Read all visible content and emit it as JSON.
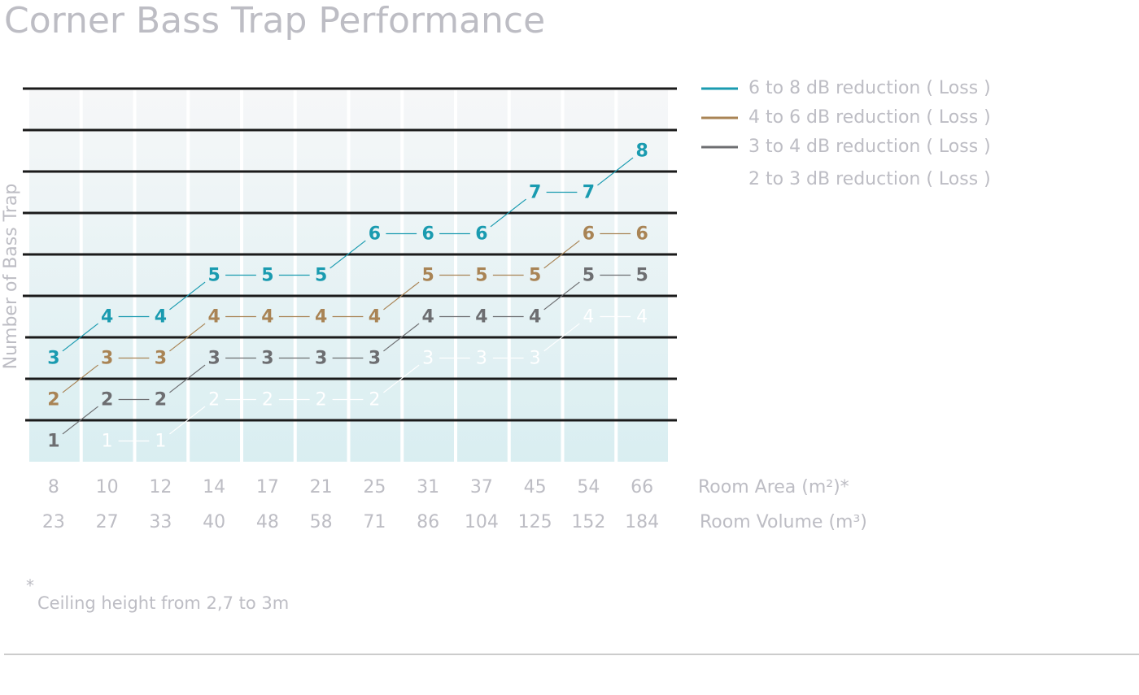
{
  "chart_data": {
    "type": "line",
    "title": "Corner Bass Trap Performance",
    "ylabel": "Number of Bass Trap",
    "xlabel": "Room Area (m²)*",
    "x2label": "Room Volume (m³)",
    "categories": [
      "8",
      "10",
      "12",
      "14",
      "17",
      "21",
      "25",
      "31",
      "37",
      "45",
      "54",
      "66"
    ],
    "categories2": [
      "23",
      "27",
      "33",
      "40",
      "48",
      "58",
      "71",
      "86",
      "104",
      "125",
      "152",
      "184"
    ],
    "series": [
      {
        "name": "6 to 8 dB reduction ( Loss )",
        "color": "#1a9bb0",
        "values": [
          3,
          4,
          4,
          5,
          5,
          5,
          6,
          6,
          6,
          7,
          7,
          8
        ]
      },
      {
        "name": "4 to 6 dB reduction ( Loss )",
        "color": "#a98455",
        "values": [
          2,
          3,
          3,
          4,
          4,
          4,
          4,
          5,
          5,
          5,
          6,
          6
        ]
      },
      {
        "name": "3 to 4 dB reduction ( Loss )",
        "color": "#6d6e71",
        "values": [
          1,
          2,
          2,
          3,
          3,
          3,
          3,
          4,
          4,
          4,
          5,
          5
        ]
      },
      {
        "name": "2 to 3 dB reduction ( Loss )",
        "color": "#ffffff",
        "values": [
          null,
          1,
          1,
          2,
          2,
          2,
          2,
          3,
          3,
          3,
          4,
          4
        ]
      }
    ],
    "ylim": [
      0.5,
      9.5
    ],
    "yticks": [
      1.5,
      2.5,
      3.5,
      4.5,
      5.5,
      6.5,
      7.5,
      8.5,
      9.5
    ],
    "grid": true,
    "legend": "right",
    "footnote_mark": "*",
    "footnote": "Ceiling height from 2,7 to 3m"
  }
}
